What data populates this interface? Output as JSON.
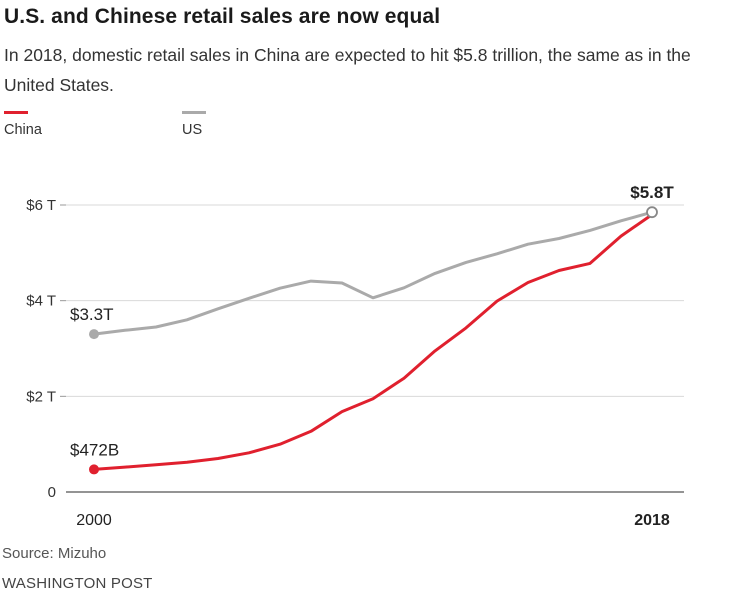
{
  "header": {
    "title": "U.S. and Chinese retail sales are now equal",
    "subtitle": "In 2018, domestic retail sales in China are expected to hit $5.8 trillion, the same as in the United States."
  },
  "legend": [
    {
      "label": "China",
      "color": "#e0202e"
    },
    {
      "label": "US",
      "color": "#aaaaaa"
    }
  ],
  "chart_data": {
    "type": "line",
    "title": "U.S. and Chinese retail sales are now equal",
    "subtitle": "In 2018, domestic retail sales in China are expected to hit $5.8 trillion, the same as in the United States.",
    "xlabel": "",
    "ylabel": "",
    "xlim": [
      2000,
      2018
    ],
    "ylim": [
      0,
      6
    ],
    "y_ticks": [
      {
        "value": 0,
        "label": "0"
      },
      {
        "value": 2,
        "label": "$2 T"
      },
      {
        "value": 4,
        "label": "$4 T"
      },
      {
        "value": 6,
        "label": "$6 T"
      }
    ],
    "x_tick_labels": [
      {
        "value": 2000,
        "label": "2000",
        "bold": false
      },
      {
        "value": 2018,
        "label": "2018",
        "bold": true
      }
    ],
    "grid": true,
    "legend_position": "top-left",
    "x": [
      2000,
      2001,
      2002,
      2003,
      2004,
      2005,
      2006,
      2007,
      2008,
      2009,
      2010,
      2011,
      2012,
      2013,
      2014,
      2015,
      2016,
      2017,
      2018
    ],
    "series": [
      {
        "name": "US",
        "color": "#aaaaaa",
        "values": [
          3.3,
          3.38,
          3.45,
          3.6,
          3.83,
          4.05,
          4.26,
          4.41,
          4.37,
          4.06,
          4.27,
          4.57,
          4.8,
          4.98,
          5.18,
          5.3,
          5.47,
          5.67,
          5.85
        ]
      },
      {
        "name": "China",
        "color": "#e0202e",
        "values": [
          0.472,
          0.52,
          0.57,
          0.62,
          0.7,
          0.82,
          1.0,
          1.27,
          1.68,
          1.95,
          2.38,
          2.95,
          3.43,
          3.99,
          4.38,
          4.63,
          4.78,
          5.35,
          5.8
        ]
      }
    ],
    "annotations": [
      {
        "label": "$3.3T",
        "series": "US",
        "x": 2000,
        "y": 3.3,
        "bold": false
      },
      {
        "label": "$472B",
        "series": "China",
        "x": 2000,
        "y": 0.472,
        "bold": false
      },
      {
        "label": "$5.8T",
        "series": "US",
        "x": 2018,
        "y": 5.85,
        "bold": true
      }
    ]
  },
  "footer": {
    "source": "Source: Mizuho",
    "credit": "WASHINGTON POST"
  }
}
